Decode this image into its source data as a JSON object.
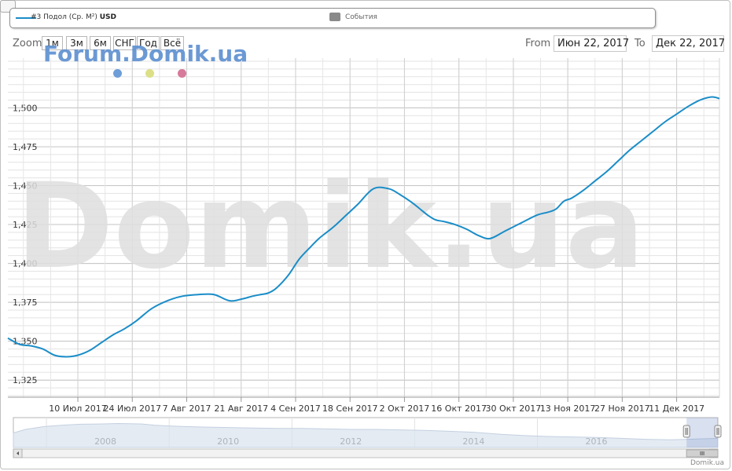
{
  "legend": {
    "series_name": "#3 Подол (Ср. М²)",
    "series_currency": "USD",
    "events_label": "События"
  },
  "zoom": {
    "label": "Zoom",
    "buttons": [
      "1м",
      "3м",
      "6м",
      "СНГ",
      "Год",
      "Всё"
    ]
  },
  "range": {
    "from_label": "From",
    "from_value": "Июн 22, 2017",
    "to_label": "To",
    "to_value": "Дек 22, 2017"
  },
  "watermark_small": "Forum.Domik.ua",
  "watermark_big": "Domik.ua",
  "credit": "Domik.ua",
  "colors": {
    "series": "#1a8dc8",
    "dot_blue": "#6e9ed8",
    "dot_yellow": "#dcdf86",
    "dot_pink": "#d7799a",
    "grid": "#d8d8d8",
    "watermark": "#dedede"
  },
  "chart_data": {
    "type": "line",
    "y_ticks": [
      "1,325",
      "1,350",
      "1,375",
      "1,400",
      "1,425",
      "1,450",
      "1,475",
      "1,500"
    ],
    "ylim": [
      1314,
      1532
    ],
    "x_ticks": [
      "10 Июл 2017",
      "24 Июл 2017",
      "7 Авг 2017",
      "21 Авг 2017",
      "4 Сен 2017",
      "18 Сен 2017",
      "2 Окт 2017",
      "16 Окт 2017",
      "30 Окт 2017",
      "13 Ноя 2017",
      "27 Ноя 2017",
      "11 Дек 2017"
    ],
    "x_tick_days": [
      18,
      32,
      46,
      60,
      74,
      88,
      102,
      116,
      130,
      144,
      158,
      172
    ],
    "xlim_days": [
      0,
      183
    ],
    "series": [
      {
        "name": "#3 Подол (Ср. М²)",
        "x_days": [
          0,
          3,
          6,
          9,
          12,
          15,
          18,
          21,
          24,
          27,
          30,
          33,
          37,
          41,
          45,
          49,
          53,
          57,
          60,
          63,
          65,
          67,
          69,
          72,
          75,
          78,
          80,
          82,
          84,
          87,
          90,
          94,
          98,
          101,
          104,
          106,
          108,
          110,
          112,
          115,
          118,
          121,
          124,
          128,
          132,
          136,
          139,
          141,
          143,
          145,
          148,
          151,
          154,
          157,
          160,
          163,
          166,
          169,
          172,
          175,
          178,
          181,
          183
        ],
        "values": [
          1352,
          1348,
          1347,
          1345,
          1341,
          1340,
          1341,
          1344,
          1349,
          1354,
          1358,
          1363,
          1371,
          1376,
          1379,
          1380,
          1380,
          1376,
          1377,
          1379,
          1380,
          1381,
          1384,
          1392,
          1403,
          1411,
          1416,
          1420,
          1424,
          1431,
          1438,
          1448,
          1448,
          1444,
          1439,
          1435,
          1431,
          1428,
          1427,
          1425,
          1422,
          1418,
          1416,
          1421,
          1426,
          1431,
          1433,
          1435,
          1440,
          1442,
          1447,
          1453,
          1459,
          1466,
          1473,
          1479,
          1485,
          1491,
          1496,
          1501,
          1505,
          1507,
          1506
        ]
      }
    ],
    "navigator": {
      "x_labels": [
        "2008",
        "2010",
        "2012",
        "2014",
        "2016"
      ],
      "x_label_years": [
        2008,
        2010,
        2012,
        2014,
        2016
      ],
      "xlim_years": [
        2006.5,
        2017.98
      ],
      "x_years": [
        2006.5,
        2006.7,
        2007.0,
        2007.3,
        2007.6,
        2007.9,
        2008.2,
        2008.4,
        2008.6,
        2008.8,
        2009.0,
        2009.3,
        2009.6,
        2010.0,
        2010.4,
        2010.8,
        2011.2,
        2011.6,
        2012.0,
        2012.4,
        2012.8,
        2013.2,
        2013.6,
        2014.0,
        2014.4,
        2014.8,
        2015.2,
        2015.6,
        2016.0,
        2016.4,
        2016.8,
        2017.2,
        2017.5,
        2017.98
      ],
      "values": [
        0.55,
        0.7,
        0.82,
        0.88,
        0.92,
        0.93,
        0.95,
        0.94,
        0.93,
        0.88,
        0.85,
        0.82,
        0.8,
        0.78,
        0.76,
        0.74,
        0.74,
        0.72,
        0.7,
        0.7,
        0.68,
        0.66,
        0.62,
        0.58,
        0.5,
        0.44,
        0.4,
        0.38,
        0.36,
        0.32,
        0.28,
        0.26,
        0.28,
        0.32
      ],
      "selected_range_years": [
        2017.47,
        2017.98
      ]
    }
  }
}
